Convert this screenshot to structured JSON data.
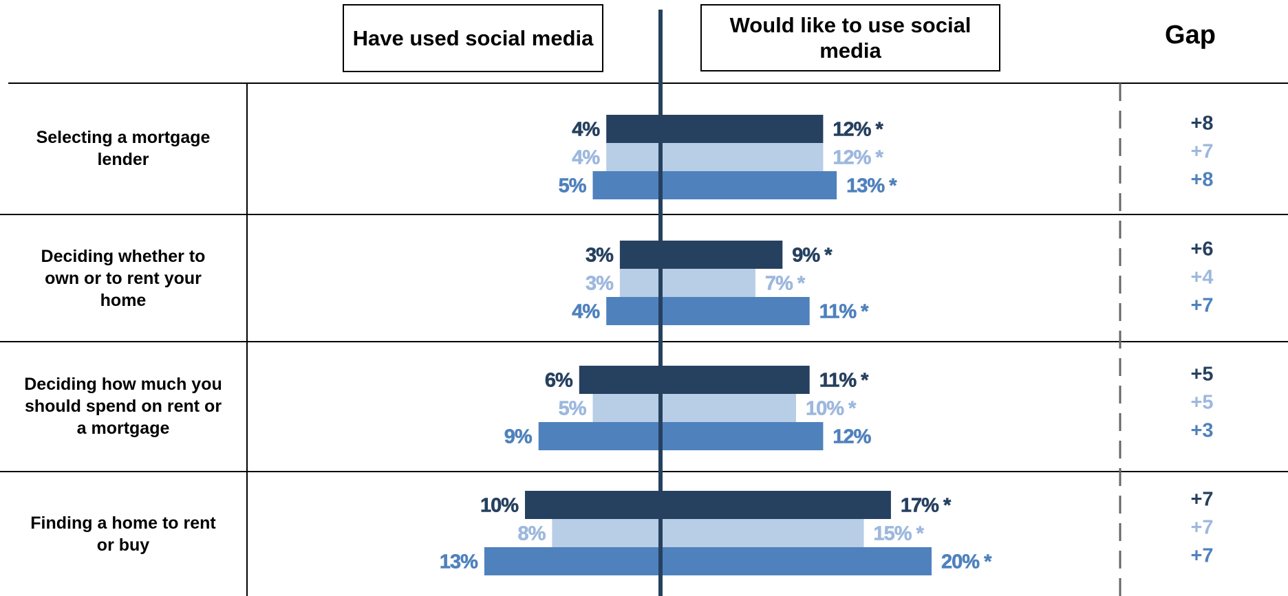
{
  "chart_data": {
    "type": "bar",
    "orientation": "horizontal-diverging",
    "left_header": "Have used social media",
    "right_header": "Would like to use social media",
    "gap_header": "Gap",
    "series_colors": [
      "#26405f",
      "#b8cde6",
      "#4f81bd"
    ],
    "series_text_colors": [
      "#26405f",
      "#9db8de",
      "#4f81bd"
    ],
    "categories": [
      "Selecting a mortgage lender",
      "Deciding whether to own or to rent your home",
      "Deciding how much you should spend on rent or a mortgage",
      "Finding a home to rent or buy"
    ],
    "series": [
      {
        "have_used": [
          4,
          3,
          6,
          10
        ],
        "have_used_labels": [
          "4%",
          "3%",
          "6%",
          "10%"
        ],
        "would_like": [
          12,
          9,
          11,
          17
        ],
        "would_like_labels": [
          "12%",
          "9%",
          "11%",
          "17%"
        ],
        "significant": [
          true,
          true,
          true,
          true
        ],
        "gap_labels": [
          "+8",
          "+6",
          "+5",
          "+7"
        ]
      },
      {
        "have_used": [
          4,
          3,
          5,
          8
        ],
        "have_used_labels": [
          "4%",
          "3%",
          "5%",
          "8%"
        ],
        "would_like": [
          12,
          7,
          10,
          15
        ],
        "would_like_labels": [
          "12%",
          "7%",
          "10%",
          "15%"
        ],
        "significant": [
          true,
          true,
          true,
          true
        ],
        "gap_labels": [
          "+7",
          "+4",
          "+5",
          "+7"
        ]
      },
      {
        "have_used": [
          5,
          4,
          9,
          13
        ],
        "have_used_labels": [
          "5%",
          "4%",
          "9%",
          "13%"
        ],
        "would_like": [
          13,
          11,
          12,
          20
        ],
        "would_like_labels": [
          "13%",
          "11%",
          "12%",
          "20%"
        ],
        "significant": [
          true,
          true,
          false,
          true
        ],
        "gap_labels": [
          "+8",
          "+7",
          "+3",
          "+7"
        ]
      }
    ],
    "significance_marker": "*"
  }
}
